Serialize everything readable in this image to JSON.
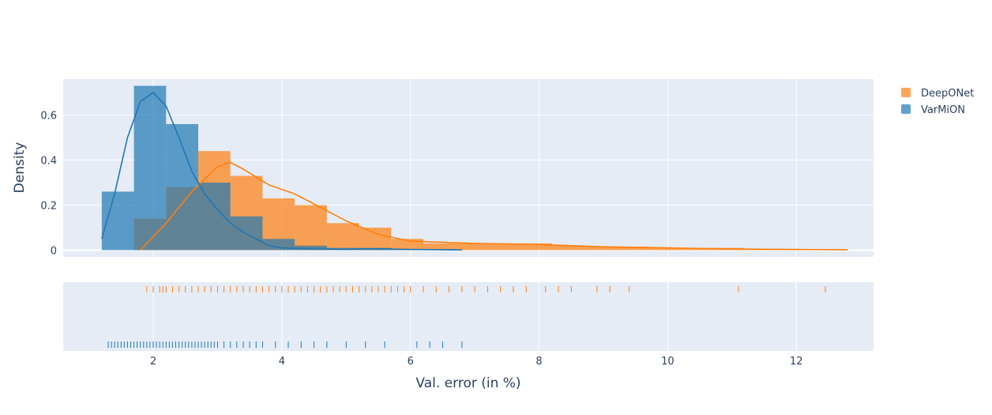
{
  "chart_data": {
    "type": "histogram",
    "xlabel": "Val. error (in %)",
    "ylabel": "Density",
    "x_range": [
      0.6,
      13.2
    ],
    "y_range": [
      -0.03,
      0.76
    ],
    "x_ticks": [
      2,
      4,
      6,
      8,
      10,
      12
    ],
    "x_tick_labels": [
      "2",
      "4",
      "6",
      "8",
      "10",
      "12"
    ],
    "y_ticks": [
      0,
      0.2,
      0.4,
      0.6
    ],
    "y_tick_labels": [
      "0",
      "0.2",
      "0.4",
      "0.6"
    ],
    "grid": true,
    "legend_position": "top-right",
    "marginal": "rug",
    "series": [
      {
        "name": "DeepONet",
        "color": "#ff7f0e",
        "bin_edges": [
          1.7,
          2.2,
          2.7,
          3.2,
          3.7,
          4.2,
          4.7,
          5.2,
          5.7,
          6.2,
          6.7,
          7.2,
          7.7,
          8.2,
          8.7,
          9.2,
          9.7,
          10.2,
          10.7,
          11.2,
          11.7,
          12.2,
          12.7
        ],
        "bin_values": [
          0.14,
          0.28,
          0.44,
          0.33,
          0.23,
          0.2,
          0.12,
          0.1,
          0.05,
          0.03,
          0.03,
          0.03,
          0.03,
          0.02,
          0.015,
          0.015,
          0.01,
          0.01,
          0.01,
          0.005,
          0.005,
          0.005
        ],
        "kde_x": [
          1.8,
          2.2,
          2.6,
          3.0,
          3.2,
          3.4,
          3.8,
          4.2,
          4.6,
          5.0,
          5.5,
          6.0,
          7.0,
          8.0,
          9.0,
          10.0,
          11.0,
          12.0,
          12.8
        ],
        "kde_y": [
          0.0,
          0.12,
          0.26,
          0.37,
          0.39,
          0.36,
          0.29,
          0.25,
          0.19,
          0.13,
          0.07,
          0.04,
          0.03,
          0.025,
          0.015,
          0.01,
          0.005,
          0.003,
          0.002
        ],
        "rug": [
          1.9,
          2.0,
          2.1,
          2.15,
          2.2,
          2.3,
          2.4,
          2.5,
          2.6,
          2.7,
          2.8,
          2.9,
          3.0,
          3.1,
          3.2,
          3.3,
          3.4,
          3.5,
          3.6,
          3.7,
          3.8,
          3.9,
          4.0,
          4.1,
          4.2,
          4.3,
          4.4,
          4.5,
          4.6,
          4.7,
          4.8,
          4.9,
          5.0,
          5.1,
          5.2,
          5.3,
          5.4,
          5.5,
          5.6,
          5.7,
          5.8,
          5.9,
          6.0,
          6.2,
          6.4,
          6.6,
          6.8,
          7.0,
          7.2,
          7.4,
          7.6,
          7.8,
          8.1,
          8.3,
          8.5,
          8.9,
          9.1,
          9.4,
          11.1,
          12.45
        ]
      },
      {
        "name": "VarMiON",
        "color": "#1f77b4",
        "bin_edges": [
          1.2,
          1.7,
          2.2,
          2.7,
          3.2,
          3.7,
          4.2,
          4.7,
          5.2,
          5.7,
          6.2,
          6.7
        ],
        "bin_values": [
          0.26,
          0.73,
          0.56,
          0.3,
          0.15,
          0.05,
          0.02,
          0.01,
          0.01,
          0.005,
          0.005
        ],
        "kde_x": [
          1.2,
          1.4,
          1.6,
          1.8,
          2.0,
          2.2,
          2.4,
          2.6,
          2.8,
          3.0,
          3.2,
          3.4,
          3.6,
          3.8,
          4.0,
          4.5,
          5.0,
          5.5,
          6.0,
          6.5,
          6.8
        ],
        "kde_y": [
          0.05,
          0.25,
          0.5,
          0.66,
          0.7,
          0.64,
          0.5,
          0.35,
          0.25,
          0.18,
          0.12,
          0.08,
          0.05,
          0.02,
          0.01,
          0.005,
          0.004,
          0.006,
          0.003,
          0.002,
          0.001
        ],
        "rug": [
          1.3,
          1.35,
          1.4,
          1.45,
          1.5,
          1.55,
          1.6,
          1.65,
          1.7,
          1.75,
          1.8,
          1.85,
          1.9,
          1.95,
          2.0,
          2.05,
          2.1,
          2.15,
          2.2,
          2.25,
          2.3,
          2.35,
          2.4,
          2.45,
          2.5,
          2.55,
          2.6,
          2.65,
          2.7,
          2.75,
          2.8,
          2.85,
          2.9,
          2.95,
          3.0,
          3.1,
          3.2,
          3.3,
          3.4,
          3.5,
          3.6,
          3.7,
          3.9,
          4.1,
          4.3,
          4.5,
          4.7,
          5.0,
          5.3,
          5.6,
          6.1,
          6.3,
          6.5,
          6.8
        ]
      }
    ]
  }
}
